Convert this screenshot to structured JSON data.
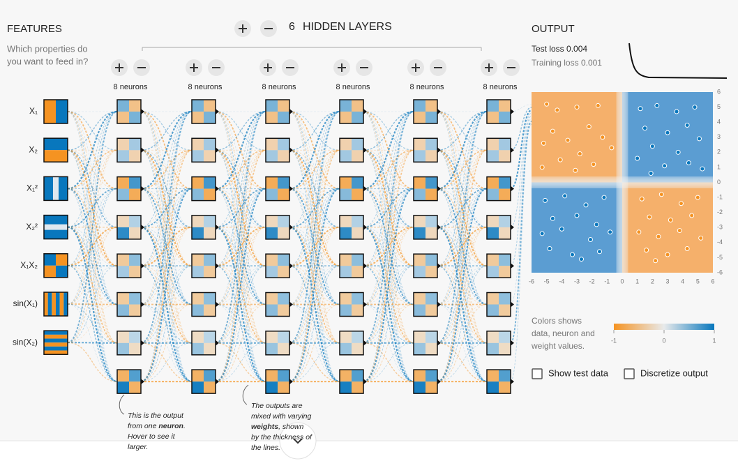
{
  "features": {
    "title": "FEATURES",
    "question": [
      "Which properties do",
      "you want to feed in?"
    ],
    "inputs": [
      "X₁",
      "X₂",
      "X₁²",
      "X₂²",
      "X₁X₂",
      "sin(X₁)",
      "sin(X₂)"
    ]
  },
  "hidden": {
    "count": "6",
    "title": "HIDDEN LAYERS",
    "layers": [
      "8 neurons",
      "8 neurons",
      "8 neurons",
      "8 neurons",
      "8 neurons",
      "8 neurons"
    ]
  },
  "output": {
    "title": "OUTPUT",
    "test_loss": {
      "label": "Test loss",
      "value": "0.004"
    },
    "training_loss": {
      "label": "Training loss",
      "value": "0.001"
    },
    "xlim": [
      -6,
      6
    ],
    "ylim": [
      -6,
      6
    ],
    "ticks": [
      -6,
      -5,
      -4,
      -3,
      -2,
      -1,
      0,
      1,
      2,
      3,
      4,
      5,
      6
    ],
    "points": [
      [
        -5,
        5.2,
        -1
      ],
      [
        -4.3,
        4.8,
        -1
      ],
      [
        -3,
        5,
        -1
      ],
      [
        -1.6,
        5.1,
        -1
      ],
      [
        -4.6,
        3.4,
        -1
      ],
      [
        -2.2,
        3.7,
        -1
      ],
      [
        -1.3,
        3,
        -1
      ],
      [
        -5.2,
        2.6,
        -1
      ],
      [
        -3.6,
        2.8,
        -1
      ],
      [
        -2.8,
        1.9,
        -1
      ],
      [
        -4.1,
        1.5,
        -1
      ],
      [
        -1.9,
        1.2,
        -1
      ],
      [
        -5.3,
        1,
        -1
      ],
      [
        -3.1,
        0.8,
        -1
      ],
      [
        -0.7,
        2.3,
        -1
      ],
      [
        1.2,
        4.9,
        1
      ],
      [
        2.3,
        5.1,
        1
      ],
      [
        3.6,
        4.7,
        1
      ],
      [
        4.8,
        5,
        1
      ],
      [
        1.5,
        3.6,
        1
      ],
      [
        3,
        3.3,
        1
      ],
      [
        4.3,
        3.8,
        1
      ],
      [
        5.1,
        2.9,
        1
      ],
      [
        2,
        2.4,
        1
      ],
      [
        3.7,
        2,
        1
      ],
      [
        1,
        1.6,
        1
      ],
      [
        2.8,
        1.1,
        1
      ],
      [
        4.4,
        1.3,
        1
      ],
      [
        5.3,
        0.9,
        1
      ],
      [
        1.9,
        0.6,
        1
      ],
      [
        -5.1,
        -1.2,
        1
      ],
      [
        -3.8,
        -0.9,
        1
      ],
      [
        -2.4,
        -1.5,
        1
      ],
      [
        -1.2,
        -1,
        1
      ],
      [
        -4.6,
        -2.4,
        1
      ],
      [
        -3,
        -2.2,
        1
      ],
      [
        -1.7,
        -2.8,
        1
      ],
      [
        -5.3,
        -3.4,
        1
      ],
      [
        -4,
        -3.1,
        1
      ],
      [
        -2.1,
        -3.8,
        1
      ],
      [
        -0.8,
        -3.3,
        1
      ],
      [
        -4.8,
        -4.4,
        1
      ],
      [
        -3.3,
        -4.8,
        1
      ],
      [
        -1.5,
        -4.6,
        1
      ],
      [
        -2.7,
        -5.1,
        1
      ],
      [
        1.3,
        -1.1,
        -1
      ],
      [
        2.6,
        -0.8,
        -1
      ],
      [
        3.9,
        -1.4,
        -1
      ],
      [
        5,
        -1,
        -1
      ],
      [
        1.8,
        -2.3,
        -1
      ],
      [
        3.2,
        -2.5,
        -1
      ],
      [
        4.6,
        -2.2,
        -1
      ],
      [
        1.1,
        -3.3,
        -1
      ],
      [
        2.4,
        -3.6,
        -1
      ],
      [
        3.8,
        -3.2,
        -1
      ],
      [
        5.2,
        -3.7,
        -1
      ],
      [
        1.6,
        -4.5,
        -1
      ],
      [
        3,
        -4.8,
        -1
      ],
      [
        4.3,
        -4.4,
        -1
      ],
      [
        2.2,
        -5.2,
        -1
      ]
    ],
    "legend": {
      "text": [
        "Colors shows",
        "data, neuron and",
        "weight values."
      ],
      "ticks": [
        -1,
        0,
        1
      ]
    },
    "checkboxes": [
      "Show test data",
      "Discretize output"
    ]
  },
  "annotations": [
    {
      "lines": [
        [
          {
            "t": "This is the output"
          }
        ],
        [
          {
            "t": "from one "
          },
          {
            "t": "neuron",
            "b": true
          },
          {
            "t": "."
          }
        ],
        [
          {
            "t": "Hover to see it"
          }
        ],
        [
          {
            "t": "larger."
          }
        ]
      ]
    },
    {
      "lines": [
        [
          {
            "t": "The outputs are"
          }
        ],
        [
          {
            "t": "mixed with varying"
          }
        ],
        [
          {
            "t": "weights",
            "b": true
          },
          {
            "t": ", shown"
          }
        ],
        [
          {
            "t": "by the thickness of"
          }
        ],
        [
          {
            "t": "the lines."
          }
        ]
      ]
    }
  ]
}
